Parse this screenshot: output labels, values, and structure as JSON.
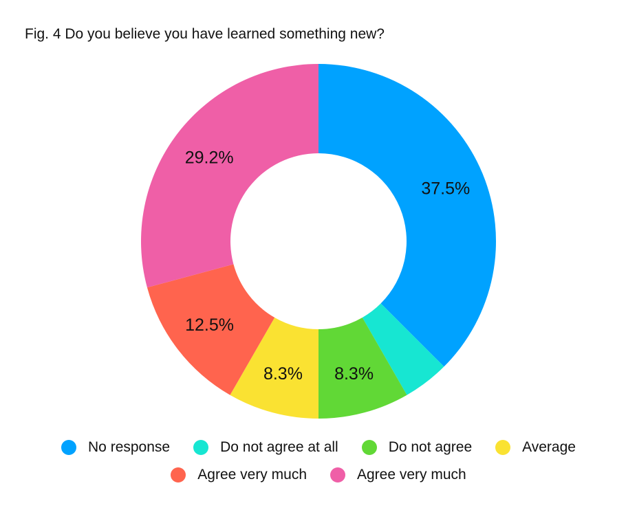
{
  "chart_data": {
    "type": "pie",
    "variant": "donut",
    "title": "Fig. 4 Do you believe you have learned something new?",
    "slices": [
      {
        "label": "No response",
        "value": 37.5,
        "display": "37.5%",
        "color": "#00a2ff"
      },
      {
        "label": "Do not agree at all",
        "value": 4.2,
        "display": "",
        "color": "#17e6d2"
      },
      {
        "label": "Do not agree",
        "value": 8.3,
        "display": "8.3%",
        "color": "#61d836"
      },
      {
        "label": "Average",
        "value": 8.3,
        "display": "8.3%",
        "color": "#fae232"
      },
      {
        "label": "Agree very much",
        "value": 12.5,
        "display": "12.5%",
        "color": "#ff644e"
      },
      {
        "label": "Agree very much",
        "value": 29.2,
        "display": "29.2%",
        "color": "#ef5fa7"
      }
    ],
    "legend": {
      "position": "bottom",
      "rows": [
        [
          {
            "label": "No response",
            "color": "#00a2ff"
          },
          {
            "label": "Do not agree at all",
            "color": "#17e6d2"
          },
          {
            "label": "Do not agree",
            "color": "#61d836"
          },
          {
            "label": "Average",
            "color": "#fae232"
          }
        ],
        [
          {
            "label": "Agree very much",
            "color": "#ff644e"
          },
          {
            "label": "Agree very much",
            "color": "#ef5fa7"
          }
        ]
      ]
    }
  }
}
